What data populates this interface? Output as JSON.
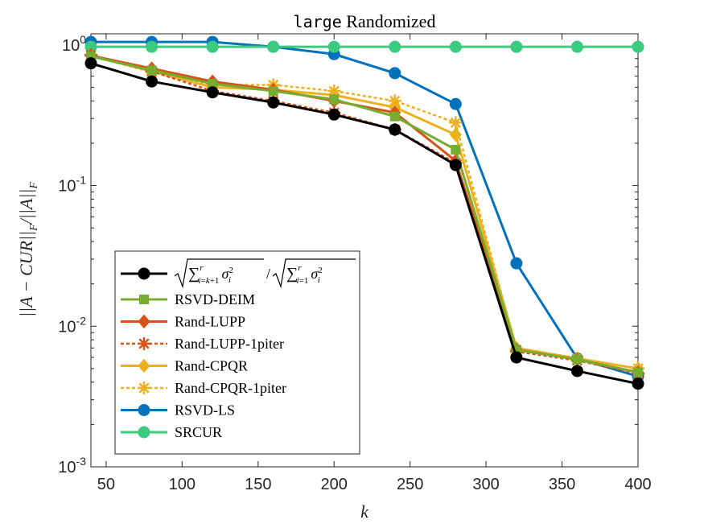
{
  "chart_data": {
    "type": "line",
    "title_mono": "large",
    "title_rest": "Randomized",
    "xlabel": "k",
    "ylabel": "||A − CUR||_F / ||A||_F",
    "yscale": "log",
    "xlim": [
      40,
      400
    ],
    "ylim": [
      0.001,
      1.2
    ],
    "x_ticks": [
      50,
      100,
      150,
      200,
      250,
      300,
      350,
      400
    ],
    "y_ticks": [
      {
        "value": 0.001,
        "base": "10",
        "exp": "-3"
      },
      {
        "value": 0.01,
        "base": "10",
        "exp": "-2"
      },
      {
        "value": 0.1,
        "base": "10",
        "exp": "-1"
      },
      {
        "value": 1,
        "base": "10",
        "exp": "0"
      }
    ],
    "grid": false,
    "legend_position": "bottom-left",
    "x": [
      40,
      80,
      120,
      160,
      200,
      240,
      280,
      320,
      360,
      400
    ],
    "series": [
      {
        "name": "sqrt(sum_{i=k+1}^r sigma_i^2) / sqrt(sum_{i=1}^r sigma_i^2)",
        "color": "#000000",
        "marker": "circle",
        "dash": false,
        "values": [
          0.74,
          0.55,
          0.46,
          0.39,
          0.32,
          0.25,
          0.14,
          0.006,
          0.0048,
          0.0039
        ]
      },
      {
        "name": "RSVD-DEIM",
        "color": "#77AC30",
        "marker": "square",
        "dash": false,
        "values": [
          0.83,
          0.66,
          0.53,
          0.47,
          0.41,
          0.31,
          0.18,
          0.0068,
          0.0058,
          0.0047
        ]
      },
      {
        "name": "Rand-LUPP",
        "color": "#D95319",
        "marker": "diamond",
        "dash": false,
        "values": [
          0.84,
          0.68,
          0.55,
          0.48,
          0.4,
          0.33,
          0.15,
          0.0068,
          0.0058,
          0.0047
        ]
      },
      {
        "name": "Rand-LUPP-1piter",
        "color": "#D95319",
        "marker": "asterisk",
        "dash": true,
        "values": [
          0.85,
          0.65,
          0.47,
          0.4,
          0.33,
          0.25,
          0.145,
          0.0066,
          0.0057,
          0.0046
        ]
      },
      {
        "name": "Rand-CPQR",
        "color": "#EDB120",
        "marker": "diamond",
        "dash": false,
        "values": [
          0.84,
          0.65,
          0.5,
          0.48,
          0.44,
          0.36,
          0.23,
          0.007,
          0.0059,
          0.005
        ]
      },
      {
        "name": "Rand-CPQR-1piter",
        "color": "#EDB120",
        "marker": "asterisk",
        "dash": true,
        "values": [
          0.84,
          0.64,
          0.52,
          0.52,
          0.47,
          0.4,
          0.28,
          0.0068,
          0.0059,
          0.005
        ]
      },
      {
        "name": "RSVD-LS",
        "color": "#0072BD",
        "marker": "circle",
        "dash": false,
        "values": [
          1.05,
          1.05,
          1.05,
          0.97,
          0.86,
          0.63,
          0.38,
          0.028,
          0.0059,
          0.0044
        ]
      },
      {
        "name": "SRCUR",
        "color": "#3ACB7F",
        "marker": "circle",
        "dash": false,
        "values": [
          0.97,
          0.97,
          0.97,
          0.97,
          0.97,
          0.97,
          0.97,
          0.97,
          0.97,
          0.97
        ]
      }
    ]
  }
}
